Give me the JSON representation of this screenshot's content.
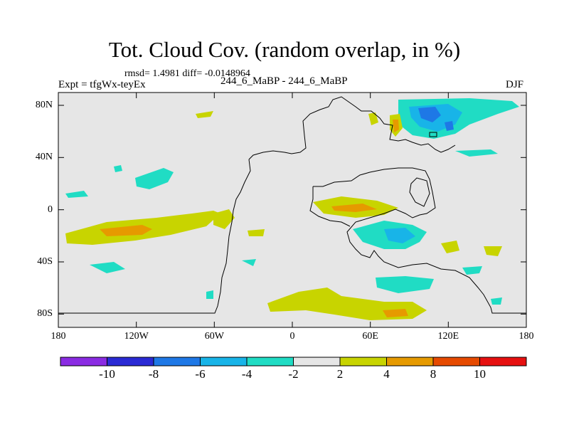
{
  "header": {
    "title": "Tot. Cloud Cov. (random overlap, in %)",
    "stats": "rmsd= 1.4981 diff= -0.0148964",
    "expt": "Expt = tfgWx-teyEx",
    "subtitle": "244_6_MaBP - 244_6_MaBP",
    "season": "DJF"
  },
  "axes": {
    "x_ticks": [
      "180",
      "120W",
      "60W",
      "0",
      "60E",
      "120E",
      "180"
    ],
    "y_ticks": [
      "80N",
      "40N",
      "0",
      "40S",
      "80S"
    ]
  },
  "colorbar": {
    "labels": [
      "-10",
      "-8",
      "-6",
      "-4",
      "-2",
      "2",
      "4",
      "8",
      "10"
    ],
    "colors": [
      "#8a2be2",
      "#2a2ad4",
      "#1e78e6",
      "#18b4e8",
      "#20dcc4",
      "#e6e6e6",
      "#c8d400",
      "#e69a00",
      "#e64a00",
      "#e61010"
    ]
  },
  "map_colors": {
    "background": "#e6e6e6",
    "teal": "#20dcc4",
    "cyan": "#18b4e8",
    "blue": "#1e78e6",
    "yellow": "#c8d400",
    "orange": "#e69a00",
    "coastline": "#000000"
  }
}
